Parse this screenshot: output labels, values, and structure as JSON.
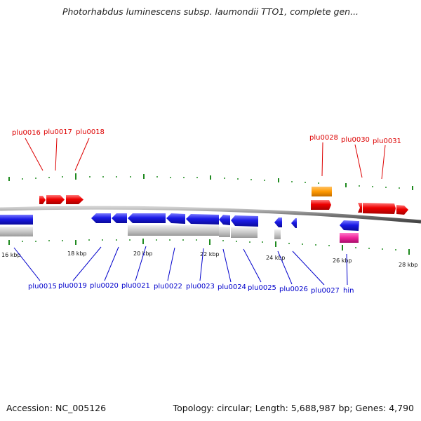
{
  "title": "Photorhabdus luminescens subsp. laumondii TTO1, complete gen...",
  "footer": {
    "accession": "Accession: NC_005126",
    "summary": "Topology: circular; Length: 5,688,987 bp; Genes: 4,790"
  },
  "colors": {
    "forward_gene": "#ee0000",
    "reverse_gene": "#1a1ae6",
    "pseudogene_band": "#c8c8c8",
    "orange_feature": "#ff9900",
    "magenta_feature": "#ee2299",
    "backbone": "#8a8a8a",
    "tick": "#1f8a1f",
    "top_label": "#dd0000",
    "bottom_label": "#0000cc"
  },
  "scale": {
    "ticks": [
      "16 kbp",
      "18 kbp",
      "20 kbp",
      "22 kbp",
      "24 kbp",
      "26 kbp",
      "28 kbp"
    ]
  },
  "top_genes": [
    "plu0016",
    "plu0017",
    "plu0018",
    "plu0028",
    "plu0030",
    "plu0031"
  ],
  "bottom_genes": [
    "plu0015",
    "plu0019",
    "plu0020",
    "plu0021",
    "plu0022",
    "plu0023",
    "plu0024",
    "plu0025",
    "plu0026",
    "plu0027",
    "hin"
  ]
}
